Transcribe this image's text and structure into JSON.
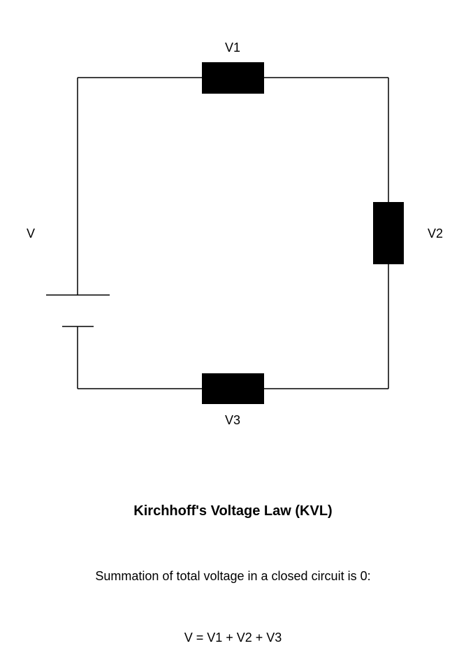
{
  "diagram": {
    "labels": {
      "v1": "V1",
      "v2": "V2",
      "v3": "V3",
      "source": "V"
    }
  },
  "text": {
    "title": "Kirchhoff's Voltage Law (KVL)",
    "description": "Summation of total voltage in a closed circuit is 0:",
    "formula": "V = V1 + V2 + V3"
  }
}
